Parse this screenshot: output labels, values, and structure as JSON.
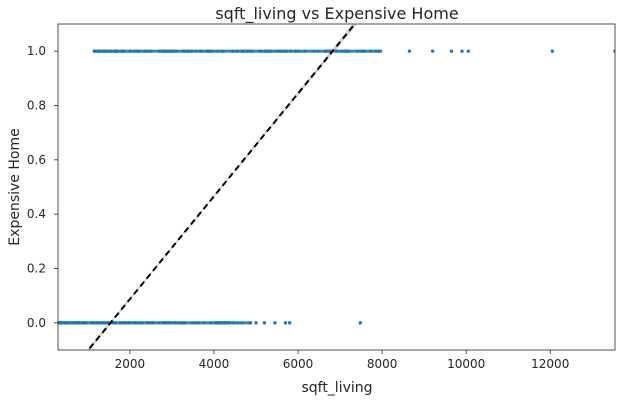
{
  "chart_data": {
    "type": "scatter",
    "title": "sqft_living vs Expensive Home",
    "xlabel": "sqft_living",
    "ylabel": "Expensive Home",
    "xlim": [
      290,
      13540
    ],
    "ylim": [
      -0.1,
      1.1
    ],
    "x_ticks": [
      2000,
      4000,
      6000,
      8000,
      10000,
      12000
    ],
    "x_tick_labels": [
      "2000",
      "4000",
      "6000",
      "8000",
      "10000",
      "12000"
    ],
    "y_ticks": [
      0.0,
      0.2,
      0.4,
      0.6,
      0.8,
      1.0
    ],
    "y_tick_labels": [
      "0.0",
      "0.2",
      "0.4",
      "0.6",
      "0.8",
      "1.0"
    ],
    "grid": false,
    "legend": "none",
    "colors": {
      "points": "#1f77b4",
      "fit_line": "#000000",
      "confidence_band": "#c8c8c8"
    },
    "series": [
      {
        "kind": "points",
        "y_value": 0,
        "x_range_dense": [
          300,
          4900
        ],
        "x_outliers": [
          5000,
          5200,
          5450,
          5700,
          5800,
          7480
        ]
      },
      {
        "kind": "points",
        "y_value": 1,
        "x_range_dense": [
          1150,
          8000
        ],
        "x_outliers": [
          8650,
          9200,
          9650,
          9900,
          10050,
          12050,
          13540
        ]
      },
      {
        "kind": "regression",
        "style": "dashed",
        "x_at_y_minus_0_1": 1010,
        "x_at_y_1_1": 7350
      }
    ]
  }
}
